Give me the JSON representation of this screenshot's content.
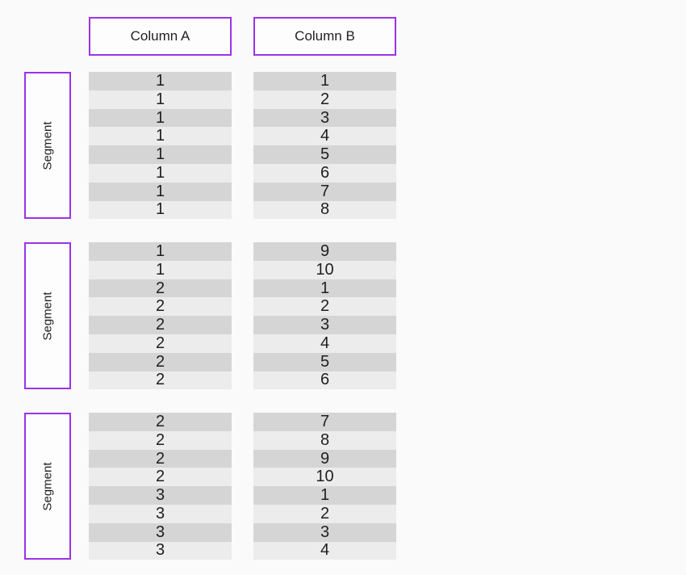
{
  "figure": {
    "columns": [
      {
        "label": "Column A"
      },
      {
        "label": "Column B"
      }
    ],
    "groups": [
      {
        "label": "Segment",
        "colA": [
          "1",
          "1",
          "1",
          "1",
          "1",
          "1",
          "1",
          "1"
        ],
        "colB": [
          "1",
          "2",
          "3",
          "4",
          "5",
          "6",
          "7",
          "8"
        ]
      },
      {
        "label": "Segment",
        "colA": [
          "1",
          "1",
          "2",
          "2",
          "2",
          "2",
          "2",
          "2"
        ],
        "colB": [
          "9",
          "10",
          "1",
          "2",
          "3",
          "4",
          "5",
          "6"
        ]
      },
      {
        "label": "Segment",
        "colA": [
          "2",
          "2",
          "2",
          "2",
          "3",
          "3",
          "3",
          "3"
        ],
        "colB": [
          "7",
          "8",
          "9",
          "10",
          "1",
          "2",
          "3",
          "4"
        ]
      }
    ],
    "colors": {
      "accent": "#9c32e8",
      "row_dark": "#d5d5d5",
      "row_light": "#ececec",
      "background": "#fafafa",
      "box_fill": "#fdfdfd",
      "text": "#1f1f1f"
    }
  }
}
